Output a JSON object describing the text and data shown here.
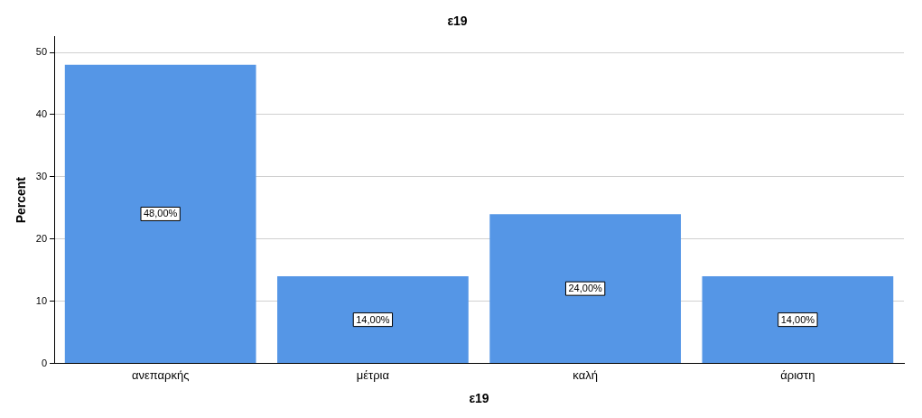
{
  "chart_data": {
    "type": "bar",
    "title": "ε19",
    "xlabel": "ε19",
    "ylabel": "Percent",
    "categories": [
      "ανεπαρκής",
      "μέτρια",
      "καλή",
      "άριστη"
    ],
    "values": [
      48,
      14,
      24,
      14
    ],
    "value_labels": [
      "48,00%",
      "14,00%",
      "24,00%",
      "14,00%"
    ],
    "color": "#5596e6",
    "ylim": [
      0,
      52.5
    ],
    "yticks": [
      0,
      10,
      20,
      30,
      40,
      50
    ],
    "grid": "y"
  }
}
